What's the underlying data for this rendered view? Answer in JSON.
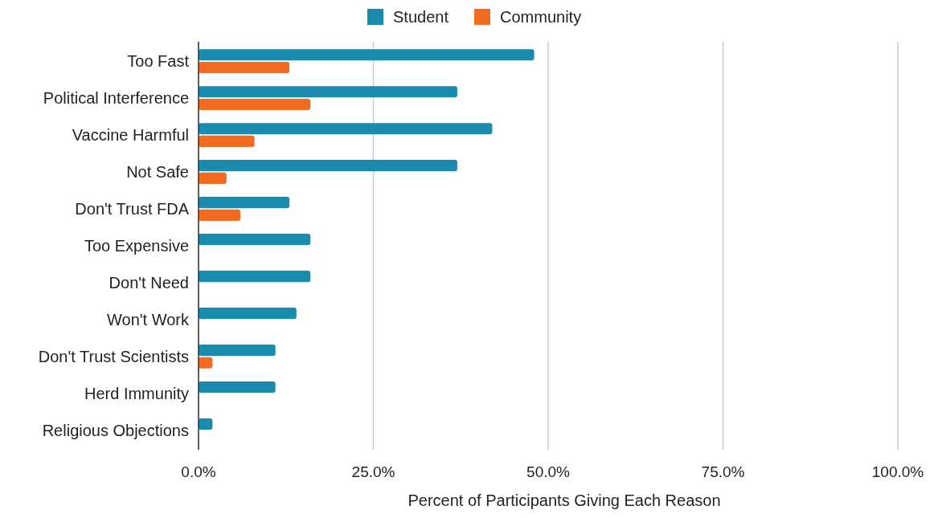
{
  "chart_data": {
    "type": "bar",
    "orientation": "horizontal",
    "xlabel": "Percent of Participants Giving Each Reason",
    "categories": [
      "Too Fast",
      "Political Interference",
      "Vaccine Harmful",
      "Not Safe",
      "Don't Trust FDA",
      "Too Expensive",
      "Don't Need",
      "Won't Work",
      "Don't Trust Scientists",
      "Herd Immunity",
      "Religious Objections"
    ],
    "series": [
      {
        "name": "Student",
        "color": "#1a8baf",
        "values": [
          48,
          37,
          42,
          37,
          13,
          16,
          16,
          14,
          11,
          11,
          2
        ]
      },
      {
        "name": "Community",
        "color": "#f26b21",
        "values": [
          13,
          16,
          8,
          4,
          6,
          null,
          null,
          null,
          2,
          null,
          null
        ]
      }
    ],
    "xlim": [
      0,
      100
    ],
    "xticks": [
      {
        "value": 0,
        "label": "0.0%"
      },
      {
        "value": 25,
        "label": "25.0%"
      },
      {
        "value": 50,
        "label": "50.0%"
      },
      {
        "value": 75,
        "label": "75.0%"
      },
      {
        "value": 100,
        "label": "100.0%"
      }
    ],
    "grid": "x",
    "legend": "top"
  }
}
